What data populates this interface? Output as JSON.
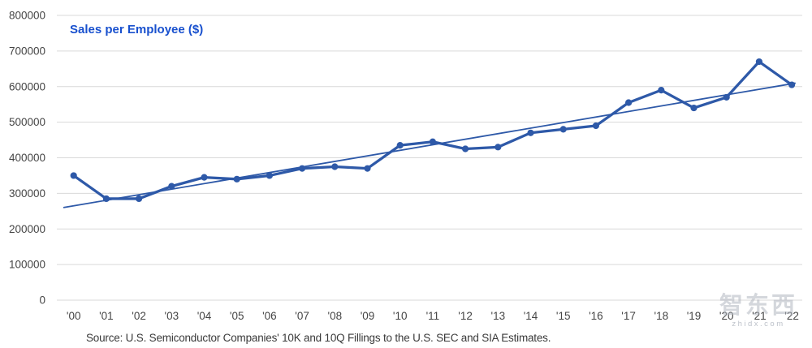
{
  "title": "Sales per Employee ($)",
  "source": "Source: U.S. Semiconductor Companies' 10K and 10Q Fillings to the U.S. SEC and SIA Estimates.",
  "watermark": {
    "text": "智东西",
    "subtext": "zhidx.com"
  },
  "colors": {
    "series": "#2E59A8",
    "trend": "#2E59A8",
    "title": "#1850CE",
    "grid": "#D9D9D9",
    "axis_text": "#454545",
    "source_text": "#3A3A3A"
  },
  "chart_data": {
    "type": "line",
    "title": "Sales per Employee ($)",
    "xlabel": "",
    "ylabel": "",
    "categories": [
      "'00",
      "'01",
      "'02",
      "'03",
      "'04",
      "'05",
      "'06",
      "'07",
      "'08",
      "'09",
      "'10",
      "'11",
      "'12",
      "'13",
      "'14",
      "'15",
      "'16",
      "'17",
      "'18",
      "'19",
      "'20",
      "'21",
      "'22"
    ],
    "series": [
      {
        "name": "Sales per Employee ($)",
        "values": [
          350000,
          285000,
          285000,
          320000,
          345000,
          340000,
          350000,
          370000,
          375000,
          370000,
          435000,
          445000,
          425000,
          430000,
          470000,
          480000,
          490000,
          555000,
          590000,
          540000,
          570000,
          670000,
          605000
        ]
      }
    ],
    "trendline": {
      "start_value": 265000,
      "end_value": 608000
    },
    "ylim": [
      0,
      800000
    ],
    "y_ticks": [
      0,
      100000,
      200000,
      300000,
      400000,
      500000,
      600000,
      700000,
      800000
    ],
    "grid": "horizontal-only",
    "legend": "none",
    "markers": "circle"
  }
}
